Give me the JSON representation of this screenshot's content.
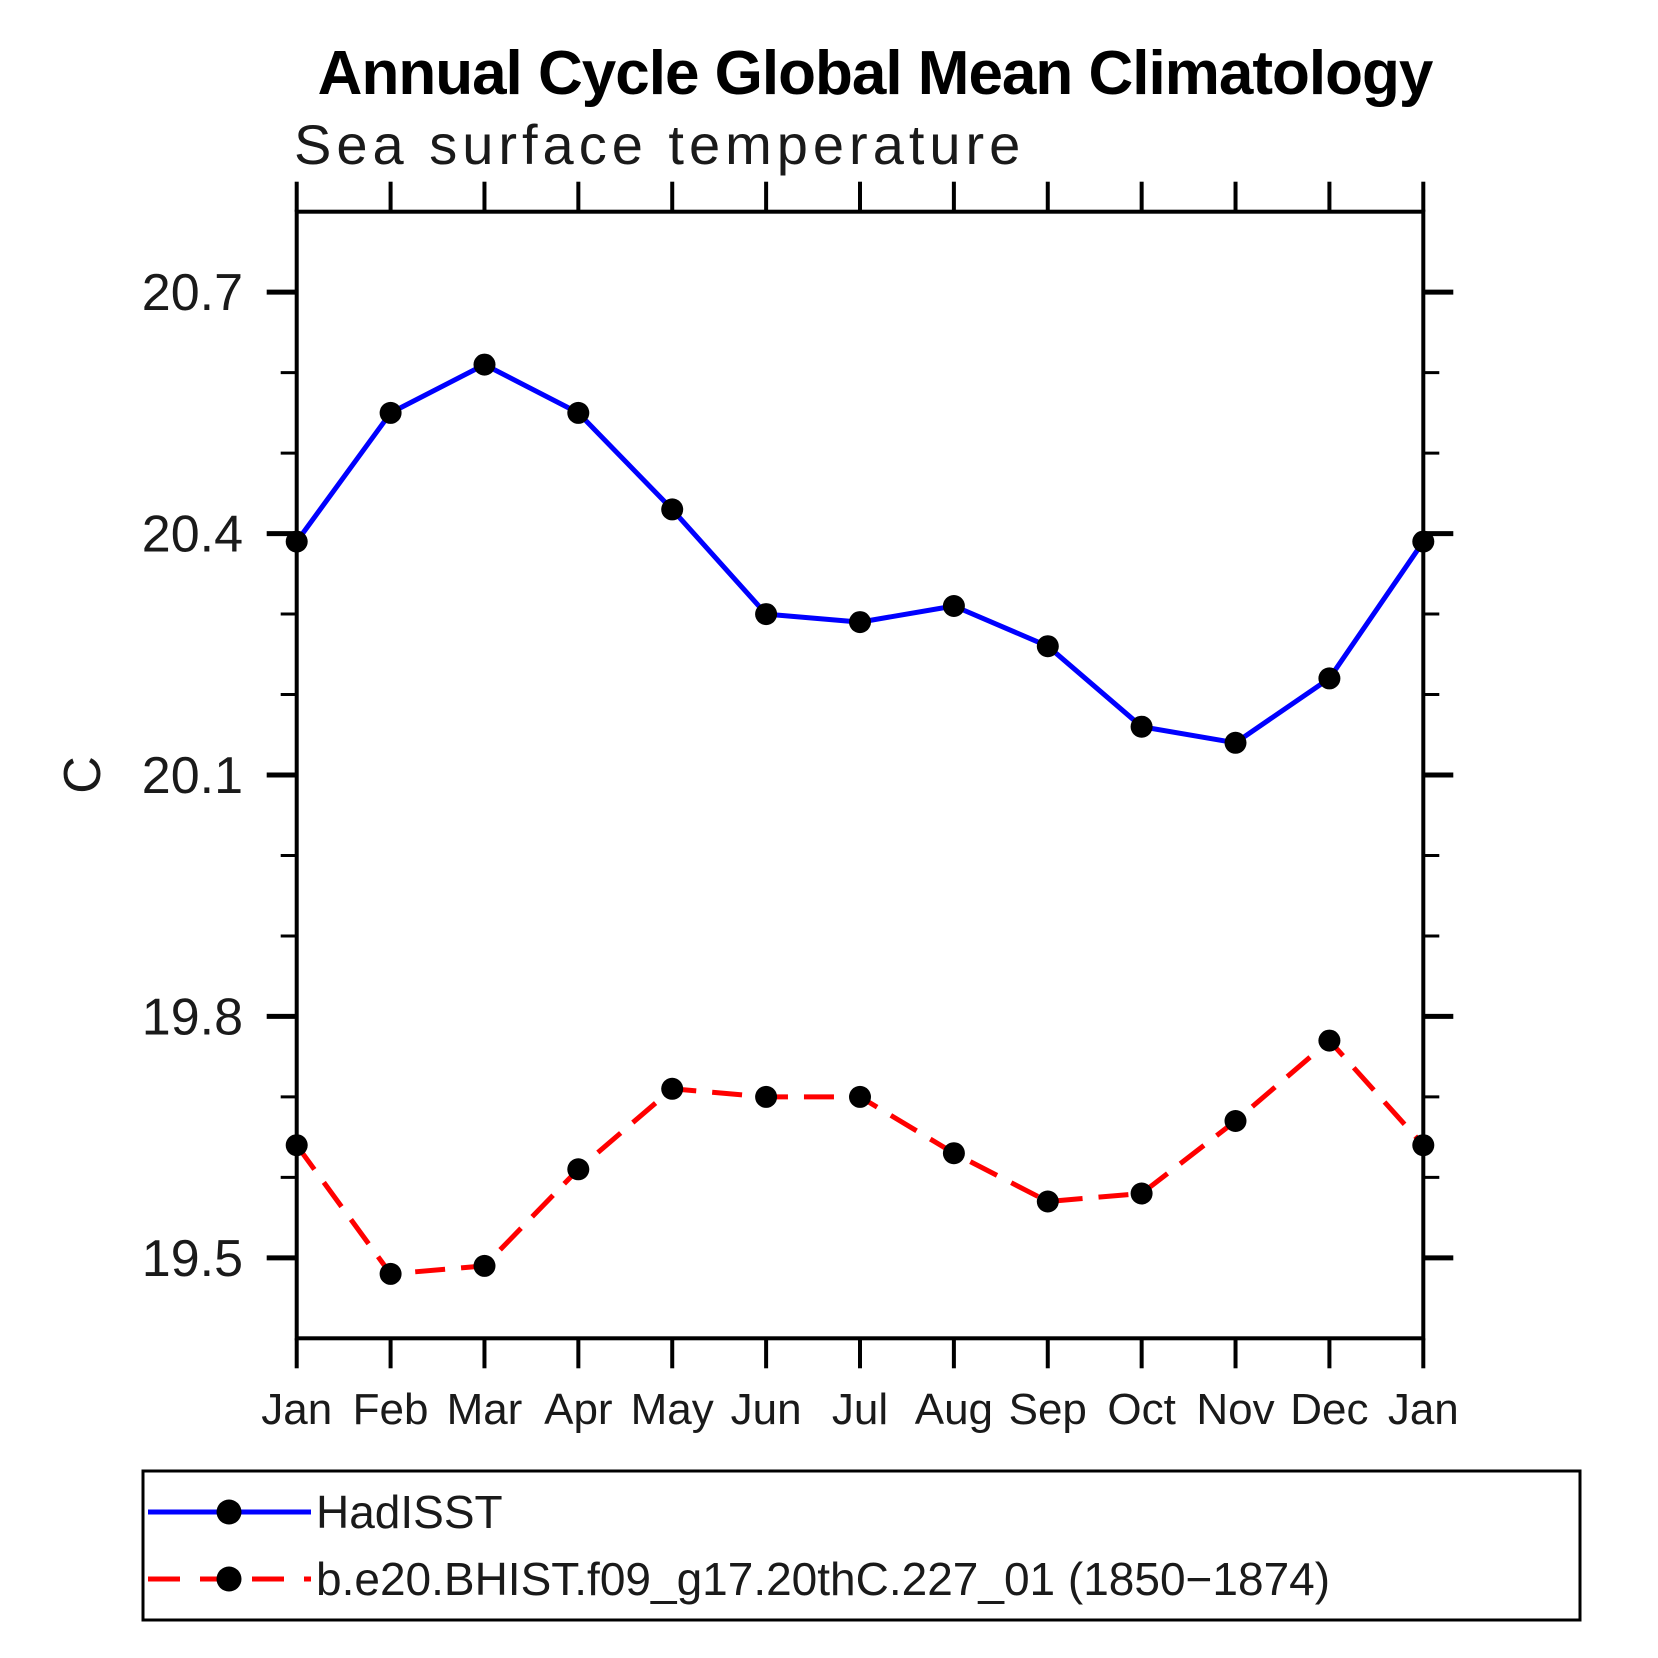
{
  "header": {
    "title": "Annual Cycle Global Mean Climatology",
    "subtitle": "Sea surface temperature"
  },
  "axes": {
    "y_label": "C"
  },
  "legend": {
    "items": [
      {
        "label": "HadISST",
        "color": "#0000ff",
        "style": "solid",
        "marker_color": "#000000"
      },
      {
        "label": "b.e20.BHIST.f09_g17.20thC.227_01 (1850−1874)",
        "color": "#ff0000",
        "style": "dashed",
        "marker_color": "#000000"
      }
    ]
  },
  "chart_data": {
    "type": "line",
    "title": "Annual Cycle Global Mean Climatology",
    "subtitle": "Sea surface temperature",
    "ylabel": "C",
    "xlabel": "",
    "categories": [
      "Jan",
      "Feb",
      "Mar",
      "Apr",
      "May",
      "Jun",
      "Jul",
      "Aug",
      "Sep",
      "Oct",
      "Nov",
      "Dec",
      "Jan"
    ],
    "series": [
      {
        "name": "HadISST",
        "color": "#0000ff",
        "line_style": "solid",
        "marker": "filled-circle",
        "marker_color": "#000000",
        "values": [
          20.39,
          20.55,
          20.61,
          20.55,
          20.43,
          20.3,
          20.29,
          20.31,
          20.26,
          20.16,
          20.14,
          20.22,
          20.39
        ]
      },
      {
        "name": "b.e20.BHIST.f09_g17.20thC.227_01 (1850−1874)",
        "color": "#ff0000",
        "line_style": "dashed",
        "marker": "filled-circle",
        "marker_color": "#000000",
        "values": [
          19.64,
          19.48,
          19.49,
          19.61,
          19.71,
          19.7,
          19.7,
          19.63,
          19.57,
          19.58,
          19.67,
          19.77,
          19.64
        ]
      }
    ],
    "ylim": [
      19.4,
      20.8
    ],
    "y_major_ticks": [
      19.5,
      19.8,
      20.1,
      20.4,
      20.7
    ],
    "y_major_tick_labels": [
      "19.5",
      "19.8",
      "20.1",
      "20.4",
      "20.7"
    ],
    "y_minor_ticks": [
      19.6,
      19.7,
      19.9,
      20.0,
      20.2,
      20.3,
      20.5,
      20.6
    ],
    "grid": false,
    "legend_position": "bottom-left-box"
  }
}
